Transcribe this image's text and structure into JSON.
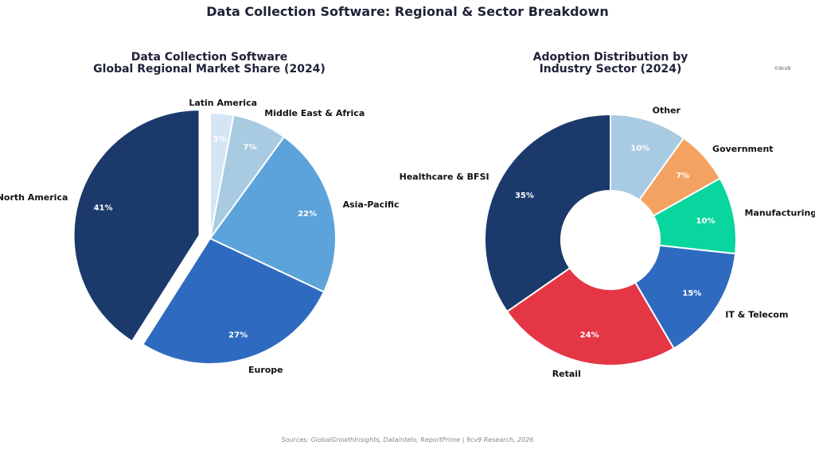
{
  "suptitle": "Data Collection Software: Regional & Sector Breakdown",
  "source": "Sources: GlobalGrowthInsights, Dataintelo, ReportPrime | 9cv9 Research, 2026",
  "watermark": "©9cv9",
  "chart_data": [
    {
      "type": "pie",
      "title_line1": "Data Collection Software",
      "title_line2": "Global Regional Market Share (2024)",
      "categories": [
        "North America",
        "Europe",
        "Asia-Pacific",
        "Middle East & Africa",
        "Latin America"
      ],
      "values": [
        41,
        27,
        22,
        7,
        3
      ],
      "pct_labels": [
        "41%",
        "27%",
        "22%",
        "7%",
        "3%"
      ],
      "colors": [
        "#1b3a6b",
        "#2e6bc0",
        "#5ba3da",
        "#a8cbe2",
        "#d4e6f4"
      ],
      "exploded": "North America",
      "start": "top, counter-clockwise"
    },
    {
      "type": "donut",
      "title_line1": "Adoption Distribution by",
      "title_line2": "Industry Sector (2024)",
      "categories": [
        "Healthcare & BFSI",
        "Retail",
        "IT & Telecom",
        "Manufacturing",
        "Government",
        "Other"
      ],
      "values": [
        35,
        24,
        15,
        10,
        7,
        10
      ],
      "pct_labels": [
        "35%",
        "24%",
        "15%",
        "10%",
        "7%",
        "10%"
      ],
      "colors": [
        "#1b3a6b",
        "#e53645",
        "#2e6bc0",
        "#08d69e",
        "#f4a261",
        "#a8cbe2"
      ],
      "start": "top, counter-clockwise"
    }
  ]
}
